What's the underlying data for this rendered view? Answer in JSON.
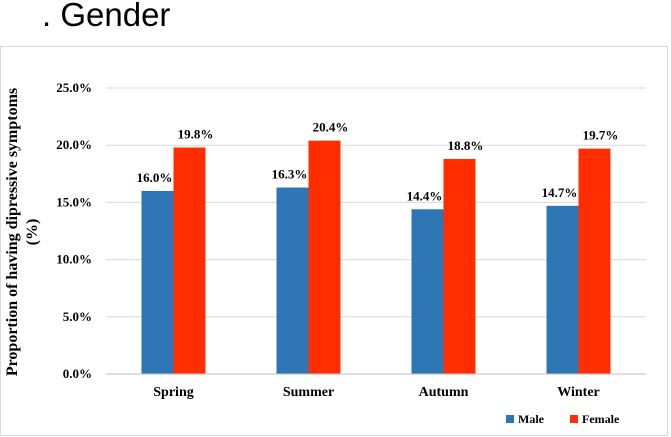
{
  "page": {
    "title": ". Gender"
  },
  "chart_data": {
    "type": "bar",
    "title": "",
    "xlabel": "",
    "ylabel_line1": "Proportion of having dipressive symptoms",
    "ylabel_line2": "(%)",
    "categories": [
      "Spring",
      "Summer",
      "Autumn",
      "Winter"
    ],
    "series": [
      {
        "name": "Male",
        "color": "#2e75b6",
        "values": [
          16.0,
          16.3,
          14.4,
          14.7
        ],
        "labels": [
          "16.0%",
          "16.3%",
          "14.4%",
          "14.7%"
        ]
      },
      {
        "name": "Female",
        "color": "#ff2d00",
        "values": [
          19.8,
          20.4,
          18.8,
          19.7
        ],
        "labels": [
          "19.8%",
          "20.4%",
          "18.8%",
          "19.7%"
        ]
      }
    ],
    "ylim": [
      0,
      25
    ],
    "yticks": [
      0,
      5,
      10,
      15,
      20,
      25
    ],
    "ytick_labels": [
      "0.0%",
      "5.0%",
      "10.0%",
      "15.0%",
      "20.0%",
      "25.0%"
    ],
    "grid": true,
    "legend_position": "bottom-right"
  }
}
